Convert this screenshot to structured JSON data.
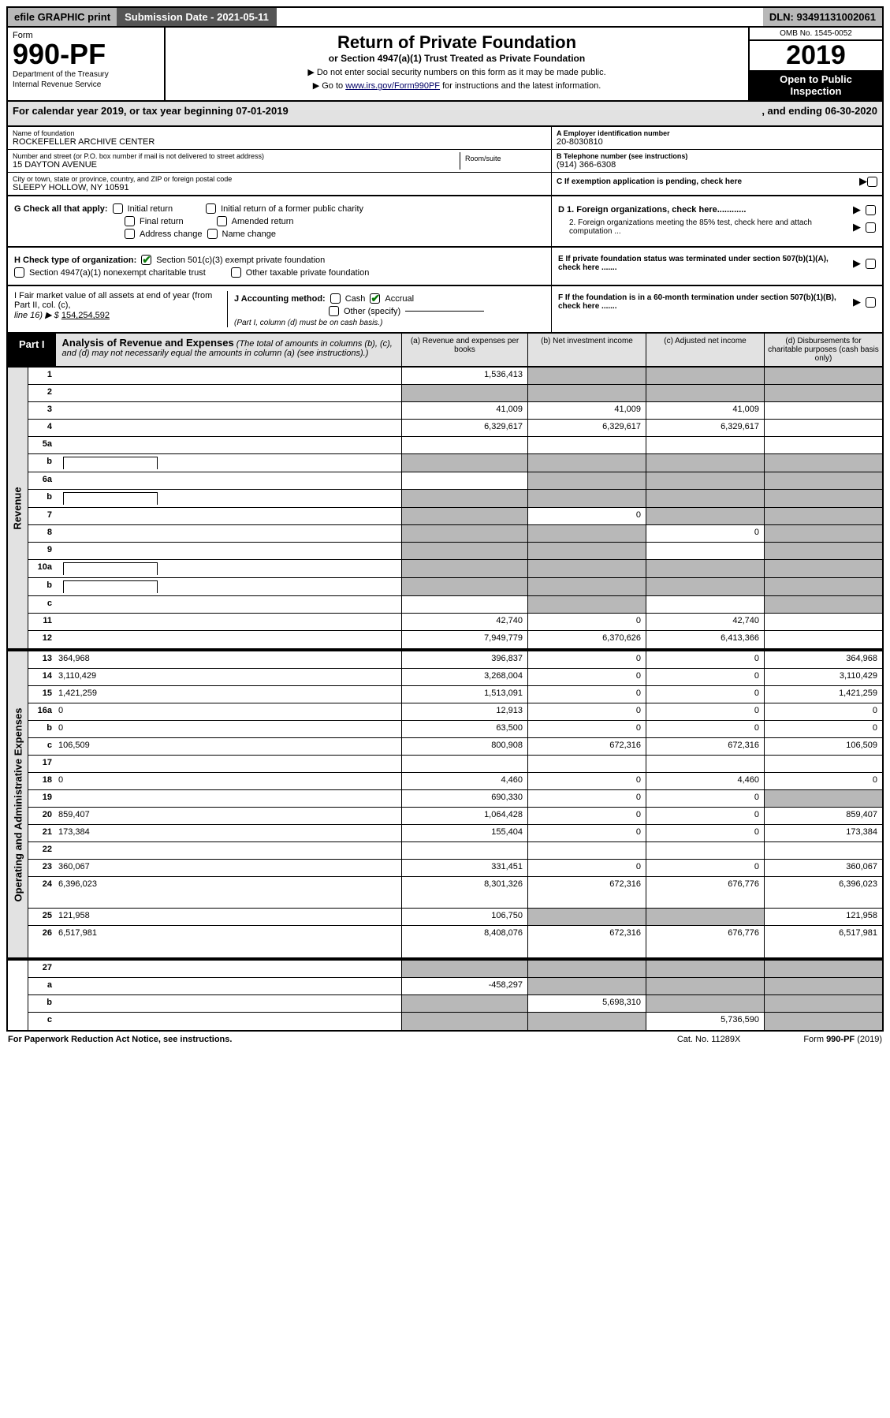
{
  "topbar": {
    "efile_label": "efile GRAPHIC print",
    "submission_label": "Submission Date - 2021-05-11",
    "dln_label": "DLN: 93491131002061"
  },
  "header": {
    "form_word": "Form",
    "form_number": "990-PF",
    "dept1": "Department of the Treasury",
    "dept2": "Internal Revenue Service",
    "title": "Return of Private Foundation",
    "subtitle": "or Section 4947(a)(1) Trust Treated as Private Foundation",
    "note1": "▶ Do not enter social security numbers on this form as it may be made public.",
    "note2_pre": "▶ Go to ",
    "note2_link": "www.irs.gov/Form990PF",
    "note2_post": " for instructions and the latest information.",
    "omb": "OMB No. 1545-0052",
    "year": "2019",
    "badge1": "Open to Public",
    "badge2": "Inspection"
  },
  "calyear": {
    "left": "For calendar year 2019, or tax year beginning 07-01-2019",
    "right": ", and ending 06-30-2020"
  },
  "entity": {
    "name_lbl": "Name of foundation",
    "name_val": "ROCKEFELLER ARCHIVE CENTER",
    "addr_lbl": "Number and street (or P.O. box number if mail is not delivered to street address)",
    "addr_val": "15 DAYTON AVENUE",
    "suite_lbl": "Room/suite",
    "city_lbl": "City or town, state or province, country, and ZIP or foreign postal code",
    "city_val": "SLEEPY HOLLOW, NY  10591",
    "a_lbl": "A Employer identification number",
    "a_val": "20-8030810",
    "b_lbl": "B Telephone number (see instructions)",
    "b_val": "(914) 366-6308",
    "c_lbl": "C If exemption application is pending, check here",
    "d1_lbl": "D 1. Foreign organizations, check here............",
    "d2_lbl": "2. Foreign organizations meeting the 85% test, check here and attach computation ...",
    "e_lbl": "E  If private foundation status was terminated under section 507(b)(1)(A), check here .......",
    "f_lbl": "F  If the foundation is in a 60-month termination under section 507(b)(1)(B), check here .......",
    "g_lbl": "G Check all that apply:",
    "g_initial": "Initial return",
    "g_initial_former": "Initial return of a former public charity",
    "g_final": "Final return",
    "g_amended": "Amended return",
    "g_addr": "Address change",
    "g_name": "Name change",
    "h_lbl": "H Check type of organization:",
    "h_501c3": "Section 501(c)(3) exempt private foundation",
    "h_4947": "Section 4947(a)(1) nonexempt charitable trust",
    "h_other": "Other taxable private foundation",
    "i_lbl": "I Fair market value of all assets at end of year (from Part II, col. (c),",
    "i_line": "line 16) ▶ $  ",
    "i_val": "154,254,592",
    "j_lbl": "J Accounting method:",
    "j_cash": "Cash",
    "j_accrual": "Accrual",
    "j_other": "Other (specify)",
    "j_note": "(Part I, column (d) must be on cash basis.)"
  },
  "part1": {
    "tab": "Part I",
    "title": "Analysis of Revenue and Expenses",
    "title_note": " (The total of amounts in columns (b), (c), and (d) may not necessarily equal the amounts in column (a) (see instructions).)",
    "col_a": "(a)   Revenue and expenses per books",
    "col_b": "(b)  Net investment income",
    "col_c": "(c)  Adjusted net income",
    "col_d": "(d)  Disbursements for charitable purposes (cash basis only)"
  },
  "side_labels": {
    "rev": "Revenue",
    "exp": "Operating and Administrative Expenses"
  },
  "rows_rev": [
    {
      "n": "1",
      "d": "",
      "a": "1,536,413",
      "b": "",
      "c": "",
      "shade_bcd": true
    },
    {
      "n": "2",
      "d": "",
      "a": "",
      "b": "",
      "c": "",
      "shade_all": true
    },
    {
      "n": "3",
      "d": "",
      "a": "41,009",
      "b": "41,009",
      "c": "41,009"
    },
    {
      "n": "4",
      "d": "",
      "a": "6,329,617",
      "b": "6,329,617",
      "c": "6,329,617"
    },
    {
      "n": "5a",
      "d": "",
      "a": "",
      "b": "",
      "c": ""
    },
    {
      "n": "b",
      "d": "",
      "a": "",
      "b": "",
      "c": "",
      "shade_all": true,
      "inline_box": true
    },
    {
      "n": "6a",
      "d": "",
      "a": "",
      "b": "",
      "c": "",
      "shade_bcd": true
    },
    {
      "n": "b",
      "d": "",
      "a": "",
      "b": "",
      "c": "",
      "shade_all": true,
      "inline_box": true
    },
    {
      "n": "7",
      "d": "",
      "a": "",
      "b": "0",
      "c": "",
      "shade_a": true,
      "shade_cd": true
    },
    {
      "n": "8",
      "d": "",
      "a": "",
      "b": "",
      "c": "0",
      "shade_ab": true,
      "shade_d": true
    },
    {
      "n": "9",
      "d": "",
      "a": "",
      "b": "",
      "c": "",
      "shade_ab": true,
      "shade_d": true
    },
    {
      "n": "10a",
      "d": "",
      "a": "",
      "b": "",
      "c": "",
      "shade_all": true,
      "inline_box": true
    },
    {
      "n": "b",
      "d": "",
      "a": "",
      "b": "",
      "c": "",
      "shade_all": true,
      "inline_box": true
    },
    {
      "n": "c",
      "d": "",
      "a": "",
      "b": "",
      "c": "",
      "shade_b": true,
      "shade_d": true
    },
    {
      "n": "11",
      "d": "",
      "a": "42,740",
      "b": "0",
      "c": "42,740"
    },
    {
      "n": "12",
      "d": "",
      "a": "7,949,779",
      "b": "6,370,626",
      "c": "6,413,366",
      "tot": true
    }
  ],
  "rows_exp": [
    {
      "n": "13",
      "d": "364,968",
      "a": "396,837",
      "b": "0",
      "c": "0"
    },
    {
      "n": "14",
      "d": "3,110,429",
      "a": "3,268,004",
      "b": "0",
      "c": "0"
    },
    {
      "n": "15",
      "d": "1,421,259",
      "a": "1,513,091",
      "b": "0",
      "c": "0"
    },
    {
      "n": "16a",
      "d": "0",
      "a": "12,913",
      "b": "0",
      "c": "0"
    },
    {
      "n": "b",
      "d": "0",
      "a": "63,500",
      "b": "0",
      "c": "0"
    },
    {
      "n": "c",
      "d": "106,509",
      "a": "800,908",
      "b": "672,316",
      "c": "672,316"
    },
    {
      "n": "17",
      "d": "",
      "a": "",
      "b": "",
      "c": ""
    },
    {
      "n": "18",
      "d": "0",
      "a": "4,460",
      "b": "0",
      "c": "4,460"
    },
    {
      "n": "19",
      "d": "",
      "a": "690,330",
      "b": "0",
      "c": "0",
      "shade_d": true
    },
    {
      "n": "20",
      "d": "859,407",
      "a": "1,064,428",
      "b": "0",
      "c": "0"
    },
    {
      "n": "21",
      "d": "173,384",
      "a": "155,404",
      "b": "0",
      "c": "0"
    },
    {
      "n": "22",
      "d": "",
      "a": "",
      "b": "",
      "c": ""
    },
    {
      "n": "23",
      "d": "360,067",
      "a": "331,451",
      "b": "0",
      "c": "0"
    },
    {
      "n": "24",
      "d": "6,396,023",
      "a": "8,301,326",
      "b": "672,316",
      "c": "676,776",
      "tall": true
    },
    {
      "n": "25",
      "d": "121,958",
      "a": "106,750",
      "b": "",
      "c": "",
      "shade_bc": true
    },
    {
      "n": "26",
      "d": "6,517,981",
      "a": "8,408,076",
      "b": "672,316",
      "c": "676,776",
      "tall": true
    }
  ],
  "rows_bot": [
    {
      "n": "27",
      "d": "",
      "a": "",
      "b": "",
      "c": "",
      "shade_all": true
    },
    {
      "n": "a",
      "d": "",
      "a": "-458,297",
      "b": "",
      "c": "",
      "shade_bcd": true
    },
    {
      "n": "b",
      "d": "",
      "a": "",
      "b": "5,698,310",
      "c": "",
      "shade_a": true,
      "shade_cd": true
    },
    {
      "n": "c",
      "d": "",
      "a": "",
      "b": "",
      "c": "5,736,590",
      "shade_ab": true,
      "shade_d": true
    }
  ],
  "footer": {
    "left": "For Paperwork Reduction Act Notice, see instructions.",
    "mid": "Cat. No. 11289X",
    "right": "Form 990-PF (2019)"
  },
  "style": {
    "shade_color": "#b8b8b8",
    "header_gray": "#e2e2e2",
    "link_color": "#000066",
    "check_green": "#0a7a0a"
  }
}
